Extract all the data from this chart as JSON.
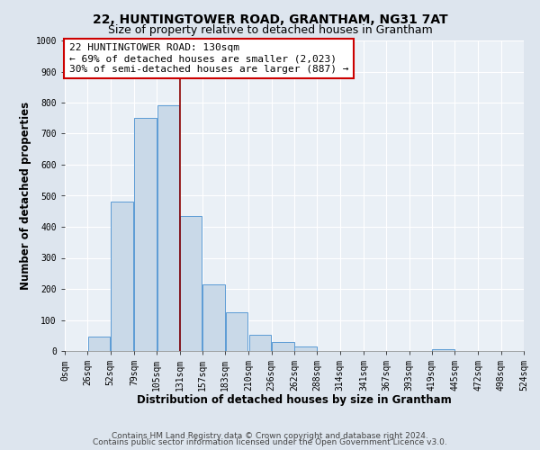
{
  "title": "22, HUNTINGTOWER ROAD, GRANTHAM, NG31 7AT",
  "subtitle": "Size of property relative to detached houses in Grantham",
  "xlabel": "Distribution of detached houses by size in Grantham",
  "ylabel": "Number of detached properties",
  "bar_left_edges": [
    0,
    26,
    52,
    79,
    105,
    131,
    157,
    183,
    210,
    236,
    262,
    288,
    314,
    341,
    367,
    393,
    419,
    445,
    472,
    498
  ],
  "bar_widths": [
    26,
    26,
    26,
    26,
    26,
    26,
    26,
    26,
    26,
    26,
    26,
    26,
    26,
    26,
    26,
    26,
    26,
    26,
    26,
    26
  ],
  "bar_heights": [
    0,
    45,
    480,
    750,
    790,
    435,
    215,
    125,
    52,
    28,
    15,
    0,
    0,
    0,
    0,
    0,
    5,
    0,
    0,
    0
  ],
  "bar_color": "#c9d9e8",
  "bar_edge_color": "#5b9bd5",
  "xlim": [
    0,
    524
  ],
  "ylim": [
    0,
    1000
  ],
  "xtick_labels": [
    "0sqm",
    "26sqm",
    "52sqm",
    "79sqm",
    "105sqm",
    "131sqm",
    "157sqm",
    "183sqm",
    "210sqm",
    "236sqm",
    "262sqm",
    "288sqm",
    "314sqm",
    "341sqm",
    "367sqm",
    "393sqm",
    "419sqm",
    "445sqm",
    "472sqm",
    "498sqm",
    "524sqm"
  ],
  "xtick_positions": [
    0,
    26,
    52,
    79,
    105,
    131,
    157,
    183,
    210,
    236,
    262,
    288,
    314,
    341,
    367,
    393,
    419,
    445,
    472,
    498,
    524
  ],
  "ytick_positions": [
    0,
    100,
    200,
    300,
    400,
    500,
    600,
    700,
    800,
    900,
    1000
  ],
  "property_line_x": 131,
  "property_line_color": "#8b0000",
  "annotation_text": "22 HUNTINGTOWER ROAD: 130sqm\n← 69% of detached houses are smaller (2,023)\n30% of semi-detached houses are larger (887) →",
  "annotation_box_color": "#ffffff",
  "annotation_box_edge_color": "#cc0000",
  "bg_color": "#dde5ee",
  "plot_bg_color": "#eaf0f6",
  "footer_line1": "Contains HM Land Registry data © Crown copyright and database right 2024.",
  "footer_line2": "Contains public sector information licensed under the Open Government Licence v3.0.",
  "grid_color": "#ffffff",
  "title_fontsize": 10,
  "subtitle_fontsize": 9,
  "axis_label_fontsize": 8.5,
  "tick_fontsize": 7,
  "annotation_fontsize": 8,
  "footer_fontsize": 6.5
}
